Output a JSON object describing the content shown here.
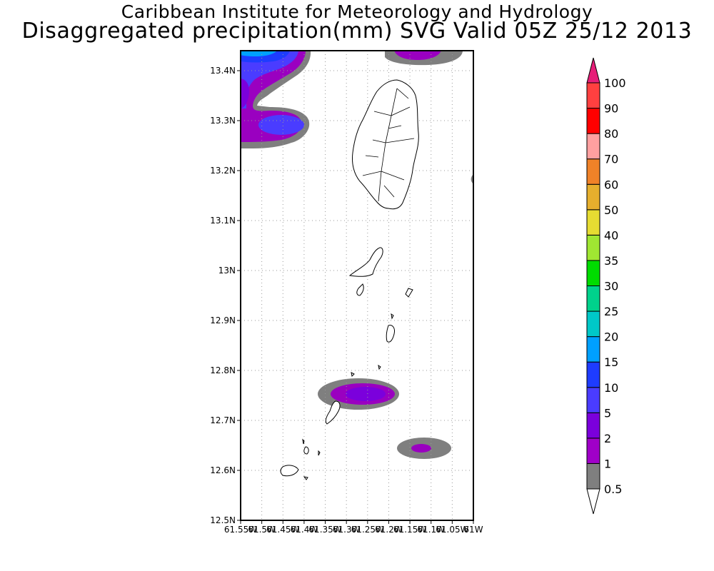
{
  "header": {
    "title": "Caribbean Institute for Meteorology and Hydrology",
    "subtitle": "Disaggregated precipitation(mm) SVG Valid 05Z 25/12 2013"
  },
  "map": {
    "lat_ticks": [
      "13.4N",
      "13.3N",
      "13.2N",
      "13.1N",
      "13N",
      "12.9N",
      "12.8N",
      "12.7N",
      "12.6N",
      "12.5N"
    ],
    "lat_values": [
      13.4,
      13.3,
      13.2,
      13.1,
      13.0,
      12.9,
      12.8,
      12.7,
      12.6,
      12.5
    ],
    "lon_ticks": [
      "61.55W",
      "61.5W",
      "61.45W",
      "61.4W",
      "61.35W",
      "61.3W",
      "61.25W",
      "61.2W",
      "61.15W",
      "61.1W",
      "61.05W",
      "61W"
    ],
    "lon_values": [
      -61.55,
      -61.5,
      -61.45,
      -61.4,
      -61.35,
      -61.3,
      -61.25,
      -61.2,
      -61.15,
      -61.1,
      -61.05,
      -61.0
    ],
    "lat_range": [
      12.5,
      13.44
    ],
    "lon_range": [
      -61.55,
      -61.0
    ],
    "grid": "dotted"
  },
  "colorbar": {
    "labels": [
      "0.5",
      "1",
      "2",
      "5",
      "10",
      "15",
      "20",
      "25",
      "30",
      "35",
      "40",
      "50",
      "60",
      "70",
      "80",
      "90",
      "100"
    ],
    "colors": [
      "#7f7f7f",
      "#a000c8",
      "#7b00dc",
      "#4a3cff",
      "#1e3cff",
      "#00a0ff",
      "#00c8c8",
      "#00d28c",
      "#00dc00",
      "#a0e632",
      "#e6dc32",
      "#e6af2d",
      "#f08228",
      "#ffa0a0",
      "#ff0000",
      "#ff4040",
      "#e61e78"
    ],
    "over_color": "#e61e78",
    "under_color": "#ffffff"
  }
}
